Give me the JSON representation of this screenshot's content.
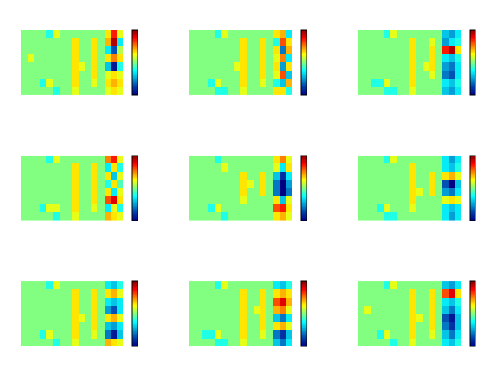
{
  "chart_data": [
    {
      "type": "heatmap",
      "color": "jet",
      "zlim": [
        -1,
        1
      ],
      "tick_labels": false,
      "cells": [
        [
          0,
          0,
          0,
          0,
          -0.2,
          0.2,
          0,
          0,
          0,
          0,
          0,
          0,
          0,
          0.3,
          0.7,
          0.2
        ],
        [
          0,
          0,
          0,
          0,
          0,
          0,
          0,
          0,
          0.3,
          0,
          0,
          0.3,
          0,
          0.4,
          0.9,
          -0.3
        ],
        [
          0,
          0,
          0,
          0,
          0,
          0,
          0,
          0,
          0.3,
          0,
          0,
          0.3,
          0,
          -0.3,
          -0.7,
          0.1
        ],
        [
          0,
          0.2,
          0,
          0,
          0,
          0,
          0,
          0,
          0.3,
          0,
          0,
          0.3,
          0,
          0.3,
          0.5,
          0.3
        ],
        [
          0,
          0,
          0,
          0,
          0,
          0,
          0,
          0,
          0.3,
          0.2,
          0,
          0.3,
          0,
          -0.4,
          -0.9,
          -0.2
        ],
        [
          0,
          0,
          0,
          0,
          0,
          0,
          0,
          0,
          0.3,
          0,
          0,
          0.3,
          0,
          0.2,
          0.3,
          0.2
        ],
        [
          0,
          0,
          0,
          -0.2,
          0.2,
          0,
          0,
          0,
          0.3,
          0,
          0,
          0.2,
          0,
          0.3,
          0.4,
          0.3
        ],
        [
          0,
          0,
          0,
          0,
          0,
          -0.2,
          0,
          0,
          0.2,
          0,
          0,
          0,
          0,
          0.2,
          0.3,
          0.2
        ]
      ]
    },
    {
      "type": "heatmap",
      "color": "jet",
      "zlim": [
        -1,
        1
      ],
      "tick_labels": false,
      "cells": [
        [
          0,
          0,
          0,
          0,
          -0.2,
          0.2,
          0,
          0,
          0,
          0,
          0,
          0,
          0,
          0.3,
          0.4,
          -0.3
        ],
        [
          0,
          0,
          0,
          0,
          0,
          0,
          0,
          0,
          0.3,
          0,
          0,
          0.3,
          0,
          -0.2,
          0.6,
          0.3
        ],
        [
          0,
          0,
          0,
          0,
          0,
          0,
          0,
          0,
          0.3,
          0,
          0,
          0.3,
          0,
          0.3,
          -0.6,
          0.4
        ],
        [
          0,
          0,
          0,
          0,
          0,
          0,
          0,
          0,
          0.3,
          0,
          0,
          0.3,
          0,
          0.2,
          0.5,
          -0.3
        ],
        [
          0,
          0,
          0,
          0,
          0,
          0,
          0,
          0.2,
          0.3,
          0,
          0,
          0.3,
          0,
          0.3,
          -0.5,
          0.3
        ],
        [
          0,
          0,
          0,
          0,
          0,
          0,
          0,
          0,
          0.3,
          0,
          0,
          0.3,
          0,
          0.2,
          0.6,
          -0.4
        ],
        [
          0,
          0,
          0,
          -0.2,
          0.2,
          0,
          0,
          0,
          0.3,
          0,
          0,
          0.2,
          0,
          -0.2,
          -0.4,
          0.4
        ],
        [
          0,
          0,
          0,
          0,
          -0.2,
          -0.2,
          0,
          0,
          0.2,
          0,
          0,
          0,
          0,
          0.3,
          0.3,
          -0.2
        ]
      ]
    },
    {
      "type": "heatmap",
      "color": "jet",
      "zlim": [
        -1,
        1
      ],
      "tick_labels": false,
      "cells": [
        [
          0,
          0,
          0,
          0,
          -0.2,
          0.2,
          0,
          0,
          0,
          0,
          0,
          0,
          0,
          -0.4,
          -0.5,
          -0.3
        ],
        [
          0,
          0,
          0,
          0,
          0,
          0,
          0,
          0,
          0.3,
          0,
          0,
          0.2,
          0,
          -0.5,
          -0.3,
          -0.2
        ],
        [
          0,
          0,
          0,
          0,
          0,
          0,
          0,
          0,
          0.3,
          0,
          0,
          0.3,
          0,
          0.7,
          0.9,
          0.3
        ],
        [
          0,
          0,
          0,
          0,
          0,
          0,
          0,
          0,
          0.3,
          0,
          0,
          0.3,
          0,
          -0.3,
          -0.4,
          -0.2
        ],
        [
          0,
          0,
          0,
          0,
          0,
          0,
          0,
          0,
          0.3,
          0,
          0.2,
          0.3,
          0,
          -0.5,
          -0.6,
          -0.3
        ],
        [
          0,
          0,
          0,
          0,
          0,
          0,
          0,
          0,
          0.3,
          0,
          0,
          0.2,
          0,
          -0.6,
          -0.7,
          -0.3
        ],
        [
          0,
          0,
          -0.2,
          -0.2,
          0.2,
          0,
          0,
          0,
          0.3,
          0,
          0,
          0,
          0,
          -0.3,
          -0.4,
          -0.2
        ],
        [
          0,
          0,
          0,
          0,
          -0.2,
          -0.2,
          0,
          0,
          0.2,
          0,
          0,
          0,
          0,
          -0.4,
          -0.5,
          -0.3
        ]
      ]
    },
    {
      "type": "heatmap",
      "color": "jet",
      "zlim": [
        -1,
        1
      ],
      "tick_labels": false,
      "cells": [
        [
          0,
          0,
          0,
          0,
          -0.2,
          0.2,
          0,
          0,
          0,
          0,
          0,
          0,
          0,
          0.5,
          0.7,
          0.2
        ],
        [
          0,
          0,
          0,
          0,
          0,
          0,
          0,
          0,
          0.3,
          0,
          0,
          0.3,
          0,
          -0.3,
          0.3,
          -0.2
        ],
        [
          0,
          0,
          0,
          0,
          0,
          0,
          0,
          0,
          0.3,
          0,
          0,
          0.3,
          0,
          0.3,
          -0.4,
          0.2
        ],
        [
          0,
          0,
          0,
          0,
          0,
          0,
          0,
          0,
          0.3,
          0,
          0,
          0.3,
          0,
          -0.2,
          0.3,
          -0.1
        ],
        [
          0,
          0,
          0,
          0,
          0,
          0,
          0,
          0,
          0.3,
          0,
          0,
          0.3,
          0,
          0.3,
          -0.3,
          0.2
        ],
        [
          0,
          0,
          0,
          0,
          0,
          0,
          0,
          0,
          0.3,
          0,
          0,
          0.3,
          0,
          0.6,
          0.8,
          0.3
        ],
        [
          0,
          0,
          0,
          -0.2,
          0.2,
          0.2,
          0,
          0,
          0.3,
          0,
          0,
          0.2,
          0,
          -0.3,
          0.2,
          -0.2
        ],
        [
          0,
          0,
          0,
          0,
          0,
          -0.2,
          0,
          0,
          0.2,
          0,
          0,
          0,
          0,
          0.4,
          0.3,
          0.2
        ]
      ]
    },
    {
      "type": "heatmap",
      "color": "jet",
      "zlim": [
        -1,
        1
      ],
      "tick_labels": false,
      "cells": [
        [
          0,
          0,
          0,
          0,
          -0.2,
          0,
          0,
          0,
          0,
          0,
          0,
          0,
          0,
          0.3,
          0.5,
          0.2
        ],
        [
          0,
          0,
          0,
          0,
          0,
          0.2,
          0,
          0,
          0,
          0,
          0,
          0,
          0,
          0.2,
          -0.3,
          0.3
        ],
        [
          0,
          0,
          0,
          0,
          0,
          0,
          0,
          0,
          0.3,
          0,
          0,
          0.3,
          0,
          -0.4,
          -0.8,
          -0.3
        ],
        [
          0,
          0,
          0,
          0,
          0,
          0,
          0,
          0,
          0.3,
          0.2,
          0,
          0.3,
          0,
          -0.6,
          -1,
          -0.5
        ],
        [
          0,
          0,
          0,
          0,
          0,
          0,
          0,
          0,
          0.3,
          0,
          0,
          0.3,
          0,
          -0.6,
          -1,
          -0.6
        ],
        [
          0,
          0,
          0,
          0,
          0,
          0,
          0,
          0,
          0.2,
          0,
          0,
          0,
          0,
          0.3,
          -0.4,
          0.2
        ],
        [
          0,
          0,
          0,
          -0.2,
          0.2,
          0,
          0,
          0,
          0,
          0,
          0,
          0,
          0,
          0.6,
          0.7,
          0.3
        ],
        [
          0,
          0,
          0,
          0,
          0,
          -0.2,
          0,
          0,
          0,
          0,
          0,
          0,
          0,
          0.3,
          0.4,
          0.2
        ]
      ]
    },
    {
      "type": "heatmap",
      "color": "jet",
      "zlim": [
        -1,
        1
      ],
      "tick_labels": false,
      "cells": [
        [
          0,
          0,
          0,
          0,
          -0.2,
          0.2,
          0,
          0,
          0,
          0,
          0,
          0,
          0,
          -0.3,
          -0.5,
          -0.3
        ],
        [
          0,
          0,
          0,
          0,
          0,
          0,
          0,
          0,
          0.3,
          0,
          0,
          0,
          0,
          -0.3,
          -0.4,
          -0.2
        ],
        [
          0,
          0,
          0,
          0,
          0,
          0,
          0,
          0,
          0.3,
          0,
          0,
          0.3,
          0,
          0.3,
          0.4,
          0.2
        ],
        [
          0,
          0,
          0,
          0,
          0,
          0,
          0,
          0,
          0.3,
          0,
          0,
          0.3,
          0,
          -0.7,
          -1,
          -0.4
        ],
        [
          0,
          0,
          0,
          0,
          0,
          0,
          0,
          0,
          0.3,
          0.2,
          0,
          0.3,
          0,
          -0.5,
          -0.6,
          -0.3
        ],
        [
          0,
          0,
          0,
          0,
          0,
          0,
          0,
          0,
          0.3,
          0,
          0,
          0,
          0,
          0.2,
          0.3,
          0.2
        ],
        [
          0,
          0,
          0,
          -0.2,
          0.2,
          0,
          0,
          0,
          0.2,
          0,
          0,
          0,
          0,
          -0.3,
          -0.4,
          -0.3
        ],
        [
          0,
          0,
          0,
          0,
          -0.2,
          -0.2,
          0,
          0,
          0,
          0,
          0,
          0,
          0,
          -0.3,
          -0.5,
          -0.3
        ]
      ]
    },
    {
      "type": "heatmap",
      "color": "jet",
      "zlim": [
        -1,
        1
      ],
      "tick_labels": false,
      "cells": [
        [
          0,
          0,
          0,
          0,
          -0.2,
          0.2,
          0,
          0,
          0,
          0,
          0,
          0,
          0,
          -0.3,
          -0.4,
          -0.2
        ],
        [
          0,
          0,
          0,
          0,
          0,
          0,
          0,
          0,
          0.3,
          0,
          0,
          0.3,
          0,
          0.3,
          0.4,
          0.2
        ],
        [
          0,
          0,
          0,
          0,
          0,
          0,
          0,
          0,
          0.3,
          0,
          0,
          0.3,
          0,
          -0.3,
          -0.4,
          -0.3
        ],
        [
          0,
          0,
          0,
          0,
          0,
          0,
          0,
          0,
          0.3,
          0,
          0,
          0.3,
          0,
          -0.5,
          -0.7,
          -0.3
        ],
        [
          0,
          0,
          0,
          0,
          0,
          0,
          0,
          0,
          0.3,
          0.2,
          0,
          0.3,
          0,
          0.3,
          0.4,
          0.2
        ],
        [
          0,
          0,
          0,
          0,
          0,
          0,
          0,
          0,
          0.3,
          0,
          0,
          0.3,
          0,
          -0.4,
          -0.5,
          -0.3
        ],
        [
          0,
          0,
          0,
          -0.2,
          0.2,
          0,
          0,
          0,
          0.3,
          0,
          0,
          0.2,
          0,
          -0.6,
          -0.9,
          -0.4
        ],
        [
          0,
          0,
          0,
          0,
          0,
          -0.2,
          0,
          0,
          0.2,
          0,
          0,
          0,
          0,
          0.4,
          0.3,
          0.2
        ]
      ]
    },
    {
      "type": "heatmap",
      "color": "jet",
      "zlim": [
        -1,
        1
      ],
      "tick_labels": false,
      "cells": [
        [
          0,
          0,
          0,
          0,
          -0.2,
          0.2,
          0,
          0,
          0,
          0,
          0,
          0,
          0,
          -0.3,
          -0.4,
          -0.2
        ],
        [
          0,
          0,
          0,
          0,
          0,
          0,
          0,
          0,
          0.3,
          0,
          0,
          0.3,
          0,
          0.3,
          0.4,
          0.3
        ],
        [
          0,
          0,
          0,
          0,
          0,
          0,
          0,
          0,
          0.3,
          0,
          0,
          0.3,
          0,
          0.6,
          0.8,
          0.4
        ],
        [
          0,
          0,
          0,
          0,
          0,
          0,
          0,
          0,
          0.3,
          0,
          0.2,
          0.3,
          0,
          0.4,
          0.5,
          0.2
        ],
        [
          0,
          0,
          0,
          0,
          0,
          0,
          0,
          0,
          0.3,
          0,
          0,
          0.3,
          0,
          -0.4,
          -0.6,
          -0.3
        ],
        [
          0,
          0,
          0,
          0,
          0,
          0,
          0,
          0,
          0.3,
          0,
          0,
          0.3,
          0,
          0.3,
          0.4,
          0.2
        ],
        [
          0,
          0,
          -0.2,
          -0.2,
          0.2,
          0,
          0,
          0,
          0.3,
          0,
          0,
          0.2,
          0,
          -0.6,
          -0.8,
          -0.4
        ],
        [
          0,
          0,
          0,
          0,
          -0.2,
          -0.2,
          0,
          0,
          0.2,
          0,
          0,
          0,
          0,
          -0.4,
          -0.6,
          -0.3
        ]
      ]
    },
    {
      "type": "heatmap",
      "color": "jet",
      "zlim": [
        -1,
        1
      ],
      "tick_labels": false,
      "cells": [
        [
          0,
          0,
          0,
          0,
          -0.2,
          0.2,
          0,
          0,
          0,
          0,
          0,
          0,
          0,
          -0.4,
          -0.5,
          -0.3
        ],
        [
          0,
          0,
          0,
          0,
          0,
          0,
          0,
          0,
          0.3,
          0,
          0,
          0.3,
          0,
          0.6,
          0.8,
          0.3
        ],
        [
          0,
          0,
          0,
          0,
          0,
          0,
          0,
          0,
          0.3,
          0,
          0,
          0.3,
          0,
          -0.3,
          -0.4,
          -0.2
        ],
        [
          0,
          0.2,
          0,
          0,
          0,
          0,
          0,
          0,
          0.3,
          0,
          0,
          0.3,
          0,
          -0.4,
          -0.6,
          -0.3
        ],
        [
          0,
          0,
          0,
          0,
          0,
          0,
          0,
          0,
          0.3,
          0.2,
          0,
          0.3,
          0,
          -0.7,
          -0.9,
          -0.4
        ],
        [
          0,
          0,
          0,
          0,
          0,
          0,
          0,
          0,
          0.3,
          0,
          0,
          0.3,
          0,
          -0.6,
          -0.8,
          -0.4
        ],
        [
          0,
          0,
          0,
          -0.2,
          0.2,
          0,
          0,
          0,
          0.3,
          0,
          0,
          0.2,
          0,
          -0.4,
          -0.6,
          -0.3
        ],
        [
          0,
          0,
          0,
          0,
          0,
          -0.2,
          0,
          0,
          0.2,
          0,
          0,
          0,
          0,
          -0.3,
          -0.4,
          -0.2
        ]
      ]
    }
  ]
}
